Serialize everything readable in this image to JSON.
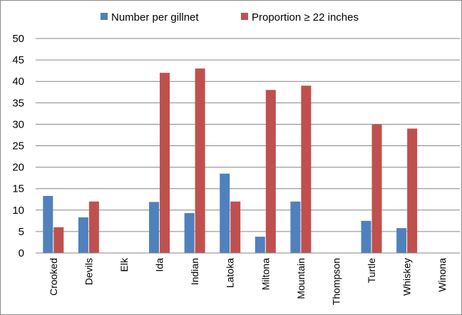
{
  "chart_data": {
    "type": "bar",
    "categories": [
      "Crooked",
      "Devils",
      "Elk",
      "Ida",
      "Indian",
      "Latoka",
      "Miltona",
      "Mountain",
      "Thompson",
      "Turtle",
      "Whiskey",
      "Winona"
    ],
    "series": [
      {
        "name": "Number per gillnet",
        "color": "#4f81bd",
        "values": [
          13.3,
          8.3,
          null,
          11.9,
          9.3,
          18.5,
          3.8,
          12.0,
          null,
          7.5,
          5.8,
          null
        ]
      },
      {
        "name": "Proportion ≥ 22 inches",
        "color": "#c0504d",
        "values": [
          6.0,
          12.0,
          null,
          42.0,
          43.0,
          12.0,
          38.0,
          39.0,
          null,
          30.0,
          29.0,
          null
        ]
      }
    ],
    "ylim": [
      0,
      50
    ],
    "yticks": [
      0,
      5,
      10,
      15,
      20,
      25,
      30,
      35,
      40,
      45,
      50
    ],
    "grid": true,
    "legend": "top"
  }
}
